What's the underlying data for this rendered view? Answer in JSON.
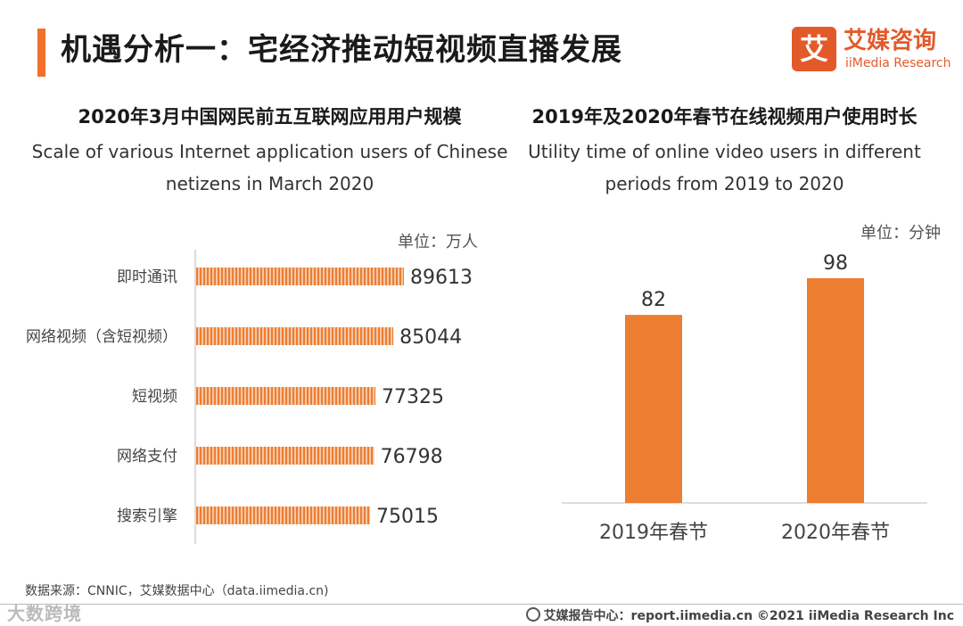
{
  "header": {
    "title": "机遇分析一：宅经济推动短视频直播发展",
    "logo_mark": "艾",
    "logo_cn": "艾媒咨询",
    "logo_en": "iiMedia Research"
  },
  "left": {
    "title_cn": "2020年3月中国网民前五互联网应用用户规模",
    "title_en_line1": "Scale of various Internet application users of Chinese",
    "title_en_line2": "netizens in March 2020",
    "unit": "单位：万人"
  },
  "right": {
    "title_cn": "2019年及2020年春节在线视频用户使用时长",
    "title_en_line1": "Utility time of online video users in different",
    "title_en_line2": "periods from 2019 to 2020",
    "unit": "单位：分钟"
  },
  "chart_data": [
    {
      "type": "bar",
      "orientation": "horizontal",
      "categories": [
        "即时通讯",
        "网络视频（含短视频）",
        "短视频",
        "网络支付",
        "搜索引擎"
      ],
      "values": [
        89613,
        85044,
        77325,
        76798,
        75015
      ],
      "title": "2020年3月中国网民前五互联网应用用户规模",
      "color": "#ed7d31"
    },
    {
      "type": "bar",
      "orientation": "vertical",
      "categories": [
        "2019年春节",
        "2020年春节"
      ],
      "values": [
        82,
        98
      ],
      "title": "2019年及2020年春节在线视频用户使用时长",
      "color": "#ed7d31"
    }
  ],
  "footer": {
    "source": "数据来源：CNNIC，艾媒数据中心（data.iimedia.cn)",
    "watermark": "大数跨境",
    "credits": "艾媒报告中心：report.iimedia.cn  ©2021  iiMedia Research  Inc"
  }
}
